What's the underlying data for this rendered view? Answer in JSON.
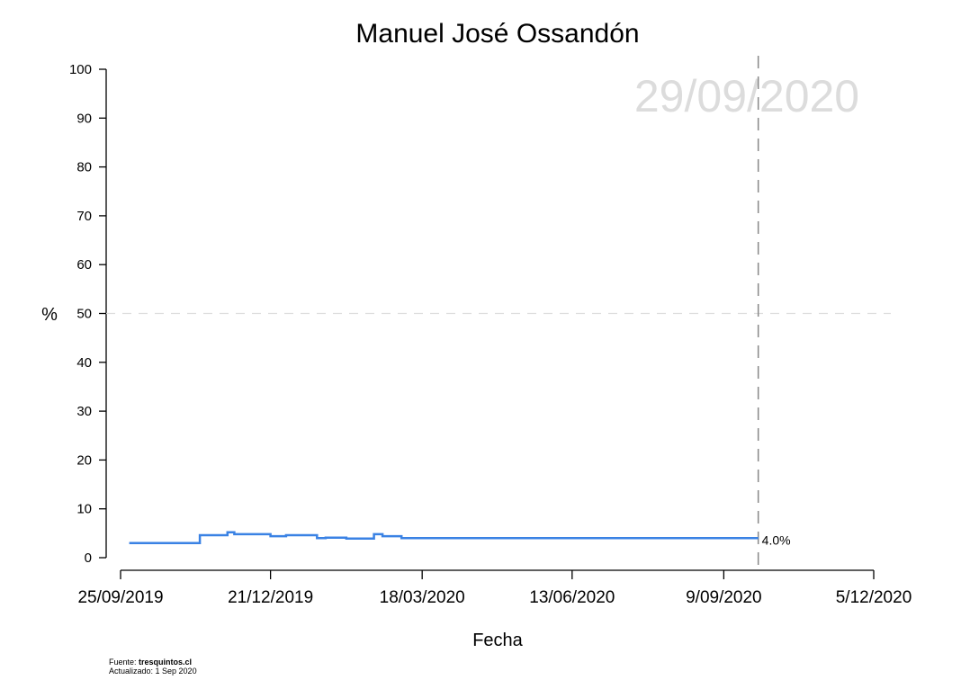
{
  "chart_data": {
    "type": "line",
    "title": "Manuel José Ossandón",
    "watermark_date": "29/09/2020",
    "xlabel": "Fecha",
    "ylabel": "%",
    "ylim": [
      0,
      100
    ],
    "yticks": [
      0,
      10,
      20,
      30,
      40,
      50,
      60,
      70,
      80,
      90,
      100
    ],
    "xlim": [
      "2019-09-25",
      "2020-12-05"
    ],
    "xticks": [
      {
        "date": "2019-09-25",
        "label": "25/09/2019"
      },
      {
        "date": "2019-12-21",
        "label": "21/12/2019"
      },
      {
        "date": "2020-03-18",
        "label": "18/03/2020"
      },
      {
        "date": "2020-06-13",
        "label": "13/06/2020"
      },
      {
        "date": "2020-09-09",
        "label": "9/09/2020"
      },
      {
        "date": "2020-12-05",
        "label": "5/12/2020"
      }
    ],
    "grid": false,
    "reference_line": {
      "y": 50,
      "style": "dashed",
      "color": "#dddddd"
    },
    "marker_line": {
      "date": "2020-09-29",
      "style": "dashed",
      "color": "#888888"
    },
    "end_label": "4.0%",
    "series": [
      {
        "color": "#3a82e4",
        "step": true,
        "points": [
          {
            "x": "2019-09-30",
            "y": 3.0
          },
          {
            "x": "2019-11-10",
            "y": 4.6
          },
          {
            "x": "2019-11-26",
            "y": 5.2
          },
          {
            "x": "2019-11-30",
            "y": 4.8
          },
          {
            "x": "2019-12-21",
            "y": 4.4
          },
          {
            "x": "2019-12-30",
            "y": 4.6
          },
          {
            "x": "2020-01-17",
            "y": 4.0
          },
          {
            "x": "2020-01-22",
            "y": 4.1
          },
          {
            "x": "2020-02-03",
            "y": 3.9
          },
          {
            "x": "2020-02-19",
            "y": 4.8
          },
          {
            "x": "2020-02-24",
            "y": 4.4
          },
          {
            "x": "2020-03-06",
            "y": 4.0
          },
          {
            "x": "2020-09-29",
            "y": 4.0
          }
        ]
      }
    ]
  },
  "footer": {
    "source_prefix": "Fuente: ",
    "source_name": "tresquintos.cl",
    "updated": "Actualizado: 1 Sep 2020"
  }
}
